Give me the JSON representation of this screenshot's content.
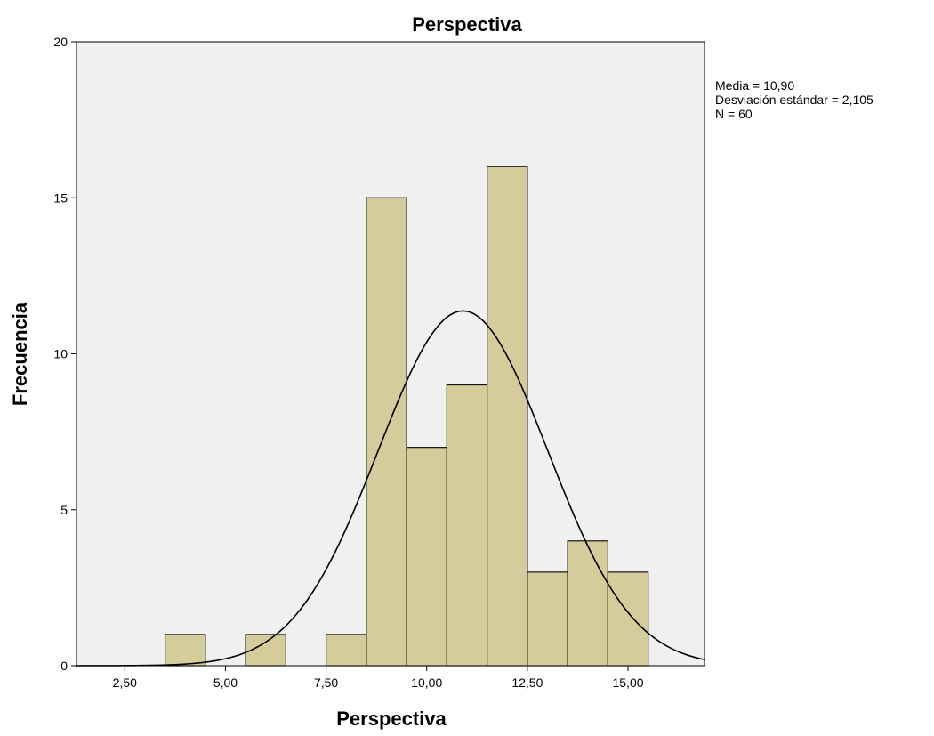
{
  "chart_data": {
    "type": "bar",
    "title": "Perspectiva",
    "xlabel": "Perspectiva",
    "ylabel": "Frecuencia",
    "xlim": [
      1.3,
      16.9
    ],
    "ylim": [
      0,
      20
    ],
    "x_ticks": [
      2.5,
      5.0,
      7.5,
      10.0,
      12.5,
      15.0
    ],
    "x_tick_labels": [
      "2,50",
      "5,00",
      "7,50",
      "10,00",
      "12,50",
      "15,00"
    ],
    "y_ticks": [
      0,
      5,
      10,
      15,
      20
    ],
    "y_tick_labels": [
      "0",
      "5",
      "10",
      "15",
      "20"
    ],
    "bin_width": 1,
    "bins": [
      {
        "center": 4,
        "count": 1
      },
      {
        "center": 6,
        "count": 1
      },
      {
        "center": 8,
        "count": 1
      },
      {
        "center": 9,
        "count": 15
      },
      {
        "center": 10,
        "count": 7
      },
      {
        "center": 11,
        "count": 9
      },
      {
        "center": 12,
        "count": 16
      },
      {
        "center": 13,
        "count": 3
      },
      {
        "center": 14,
        "count": 4
      },
      {
        "center": 15,
        "count": 3
      }
    ],
    "normal_curve": {
      "mean": 10.9,
      "sd": 2.105,
      "n": 60
    },
    "stats_lines": [
      "Media = 10,90",
      "Desviación estándar = 2,105",
      "N = 60"
    ],
    "colors": {
      "bar_fill": "#d4cd9b",
      "bar_stroke": "#111111",
      "plot_background": "#f0f0f0",
      "curve": "#000000"
    },
    "grid": false,
    "legend": "right"
  }
}
